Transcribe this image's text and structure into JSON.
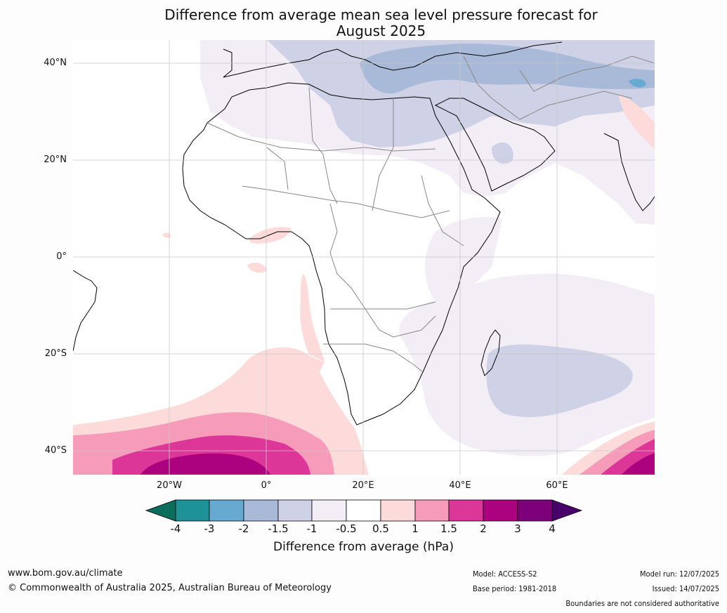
{
  "title_line1": "Difference from average mean sea level pressure forecast for",
  "title_line2": "August 2025",
  "lat_labels": [
    "40°N",
    "20°N",
    "0°",
    "20°S",
    "40°S"
  ],
  "lon_labels": [
    "20°W",
    "0°",
    "20°E",
    "40°E",
    "60°E"
  ],
  "colorbar": {
    "ticks": [
      "-4",
      "-3",
      "-2",
      "-1.5",
      "-1",
      "-0.5",
      "0.5",
      "1",
      "1.5",
      "2",
      "3",
      "4"
    ],
    "colors": [
      "#0b6e5c",
      "#1e9296",
      "#66a9d1",
      "#a9b9d8",
      "#cfd1e6",
      "#f3eef6",
      "#ffffff",
      "#fddbdb",
      "#f69bb9",
      "#dc3798",
      "#ad0280",
      "#7c0079",
      "#48006a"
    ],
    "label": "Difference from average (hPa)"
  },
  "footer": {
    "url": "www.bom.gov.au/climate",
    "copyright": "© Commonwealth of Australia 2025, Australian Bureau of Meteorology",
    "model": "Model: ACCESS-S2",
    "base_period": "Base period: 1981-2018",
    "model_run": "Model run: 12/07/2025",
    "issued": "Issued: 14/07/2025",
    "disclaimer": "Boundaries are not considered authoritative"
  }
}
